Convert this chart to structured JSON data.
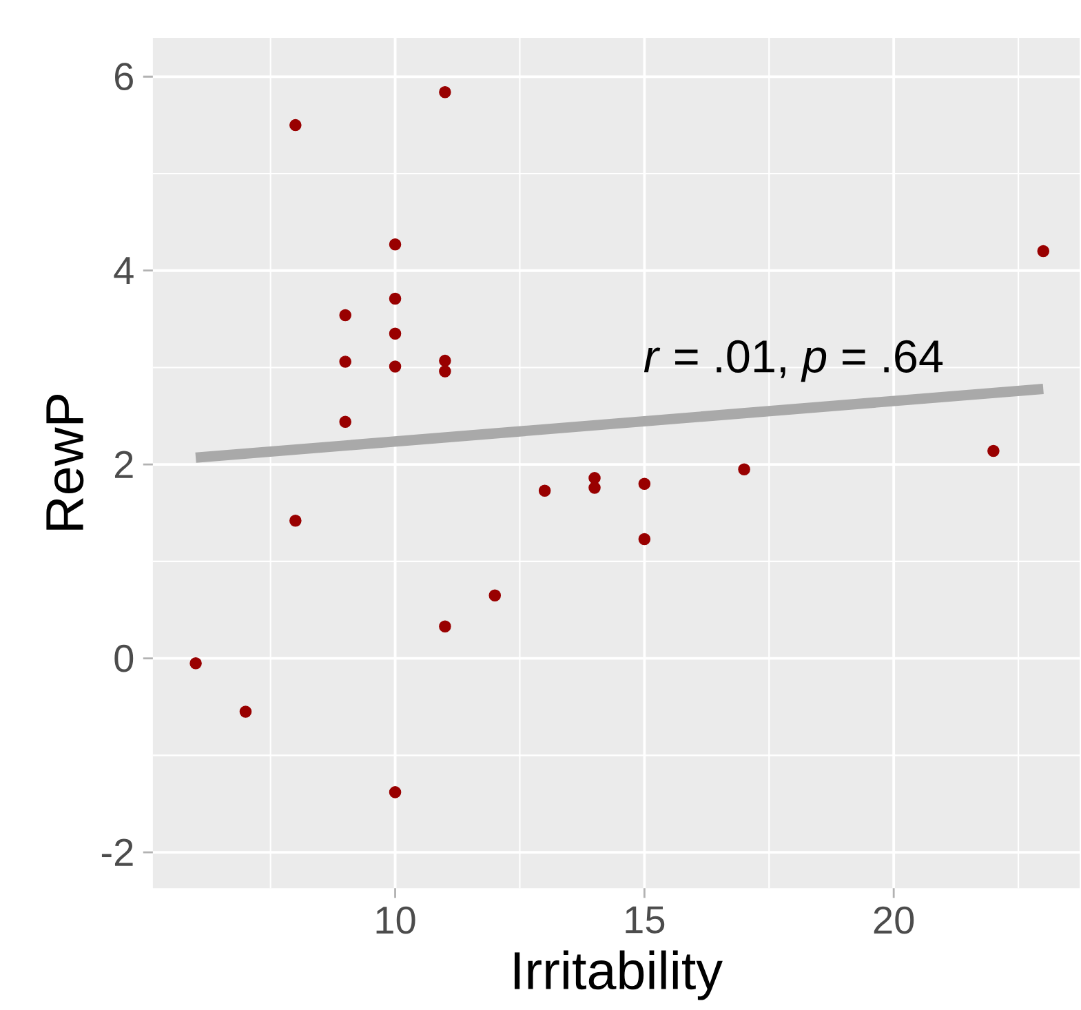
{
  "chart_data": {
    "type": "scatter",
    "xlabel": "Irritability",
    "ylabel": "RewP",
    "annotations": [
      "*r* = .01, *p* = .64"
    ],
    "xlim": [
      5.14,
      23.73
    ],
    "ylim": [
      -2.37,
      6.4
    ],
    "xticks": [
      10,
      15,
      20
    ],
    "yticks": [
      -2,
      0,
      2,
      4,
      6
    ],
    "grid": true,
    "series": [
      {
        "marker": "circle",
        "color": "#990000",
        "x": [
          8,
          11,
          10,
          23,
          10,
          9,
          10,
          9,
          11,
          10,
          11,
          9,
          22,
          17,
          14,
          15,
          14,
          13,
          8,
          15,
          12,
          11,
          6,
          7,
          10
        ],
        "values": [
          5.5,
          5.84,
          4.27,
          4.2,
          3.71,
          3.54,
          3.35,
          3.06,
          3.07,
          3.01,
          2.96,
          2.44,
          2.14,
          1.95,
          1.86,
          1.8,
          1.76,
          1.73,
          1.42,
          1.23,
          0.65,
          0.33,
          -0.05,
          -0.55,
          -1.38
        ]
      },
      {
        "type": "line",
        "marker": "none",
        "color": "#a9a9a9",
        "x": [
          6,
          23
        ],
        "values": [
          2.07,
          2.78
        ]
      }
    ]
  }
}
